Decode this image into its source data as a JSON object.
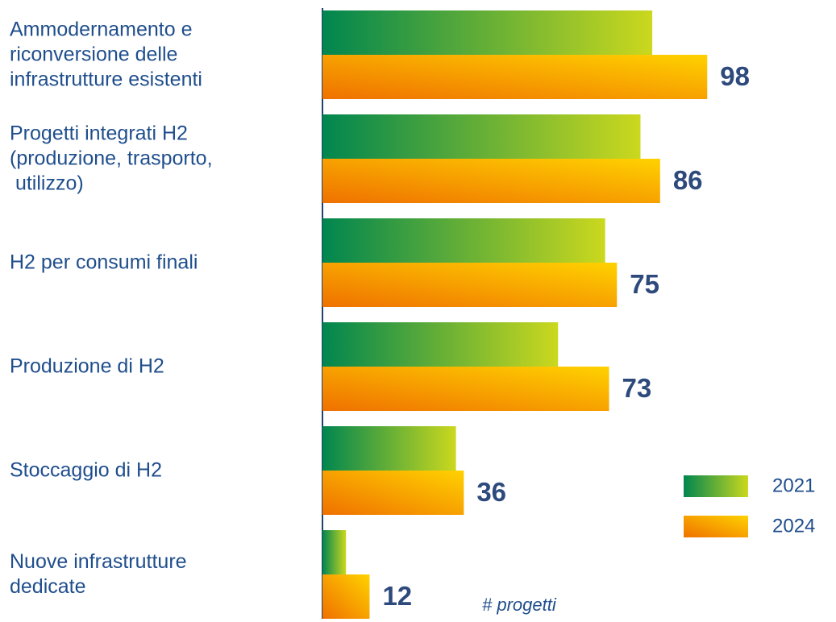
{
  "chart_data": {
    "type": "bar",
    "orientation": "horizontal",
    "categories": [
      "Ammodernamento e\nriconversione delle\ninfrastrutture esistenti",
      "Progetti integrati H2\n(produzione, trasporto,\n utilizzo)",
      "H2 per consumi finali",
      "Produzione di H2",
      "Stoccaggio di H2",
      "Nuove infrastrutture\ndedicate"
    ],
    "series": [
      {
        "name": "2021",
        "colors": [
          "#00864f",
          "#cbd81e"
        ],
        "values": [
          84,
          81,
          72,
          60,
          34,
          6
        ],
        "show_values": false
      },
      {
        "name": "2024",
        "colors": [
          "#ef7100",
          "#ffd200"
        ],
        "values": [
          98,
          86,
          75,
          73,
          36,
          12
        ],
        "show_values": true
      }
    ],
    "xlim": [
      0,
      100
    ],
    "x_label": "# progetti",
    "legend": "lower right"
  }
}
